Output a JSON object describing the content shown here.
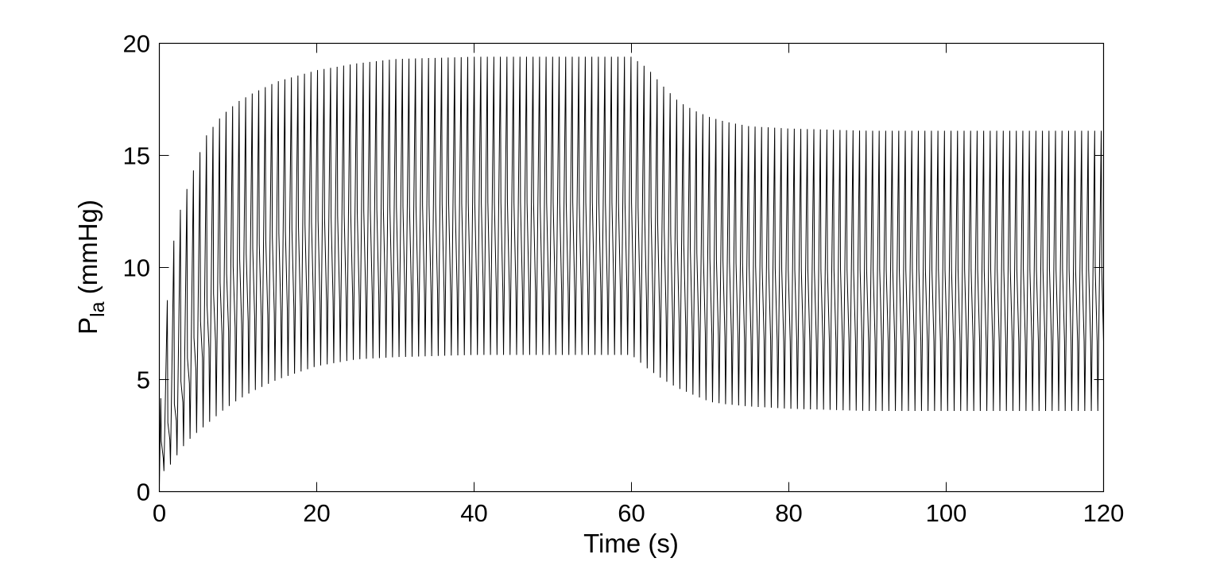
{
  "chart_data": {
    "type": "line",
    "title": "",
    "xlabel": "Time (s)",
    "ylabel_main": "P",
    "ylabel_sub": "la",
    "ylabel_unit": " (mmHg)",
    "xlim": [
      0,
      120
    ],
    "ylim": [
      0,
      20
    ],
    "xticks": [
      0,
      20,
      40,
      60,
      80,
      100,
      120
    ],
    "yticks": [
      0,
      5,
      10,
      15,
      20
    ],
    "grid": false,
    "line_color": "#000000",
    "series": [
      {
        "signal": "oscillating pressure, approx. 1 beat per 0.83 s",
        "beat_period_s": 0.83,
        "envelope_upper": {
          "t": [
            0,
            1,
            2,
            3,
            4,
            5,
            6,
            8,
            10,
            12,
            15,
            20,
            25,
            30,
            40,
            50,
            60,
            62,
            64,
            66,
            68,
            70,
            72,
            75,
            80,
            90,
            100,
            120
          ],
          "v": [
            3.2,
            8.5,
            11.7,
            13.0,
            14.0,
            15.0,
            15.9,
            16.8,
            17.4,
            17.8,
            18.3,
            18.8,
            19.1,
            19.3,
            19.4,
            19.4,
            19.4,
            18.9,
            18.1,
            17.4,
            17.0,
            16.7,
            16.5,
            16.3,
            16.2,
            16.1,
            16.1,
            16.1
          ]
        },
        "envelope_lower": {
          "t": [
            0,
            1,
            2,
            3,
            4,
            5,
            6,
            8,
            10,
            12,
            15,
            20,
            25,
            30,
            40,
            50,
            60,
            62,
            64,
            66,
            68,
            70,
            72,
            75,
            80,
            90,
            100,
            120
          ],
          "v": [
            0.8,
            1.0,
            1.5,
            2.0,
            2.4,
            2.7,
            3.0,
            3.6,
            4.1,
            4.5,
            5.0,
            5.6,
            5.9,
            6.0,
            6.1,
            6.1,
            6.1,
            5.5,
            5.0,
            4.6,
            4.3,
            4.0,
            3.9,
            3.8,
            3.7,
            3.6,
            3.6,
            3.6
          ]
        },
        "band_upper": {
          "t": [
            0,
            2,
            4,
            6,
            8,
            10,
            12,
            15,
            20,
            25,
            30,
            40,
            50,
            60,
            62,
            64,
            66,
            68,
            70,
            75,
            80,
            90,
            100,
            120
          ],
          "v": [
            2.0,
            4.0,
            6.5,
            8.3,
            9.5,
            10.3,
            10.9,
            11.5,
            12.1,
            12.5,
            12.7,
            12.9,
            12.9,
            12.9,
            12.4,
            11.8,
            11.2,
            10.7,
            10.4,
            10.1,
            9.9,
            9.9,
            9.9,
            9.9
          ]
        },
        "band_lower": {
          "t": [
            0,
            2,
            4,
            6,
            8,
            10,
            12,
            15,
            20,
            25,
            30,
            40,
            50,
            60,
            62,
            64,
            66,
            68,
            70,
            75,
            80,
            90,
            100,
            120
          ],
          "v": [
            1.0,
            3.0,
            5.0,
            6.3,
            7.0,
            7.4,
            7.7,
            8.0,
            8.4,
            8.7,
            8.8,
            8.9,
            8.9,
            8.9,
            8.4,
            7.9,
            7.5,
            7.2,
            7.0,
            6.8,
            6.7,
            6.7,
            6.7,
            6.7
          ]
        }
      }
    ]
  }
}
